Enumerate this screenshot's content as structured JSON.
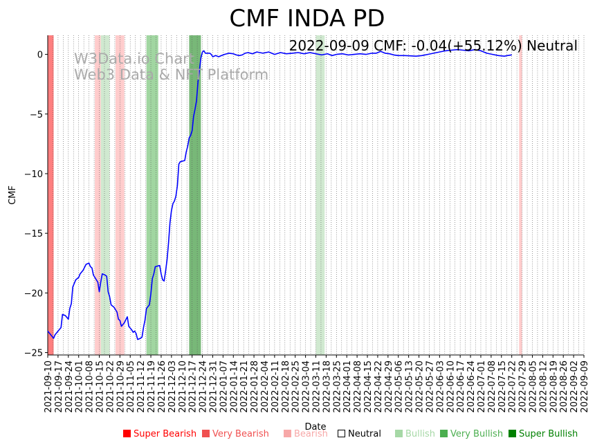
{
  "chart_data": {
    "type": "line",
    "title": "CMF INDA PD",
    "xlabel": "Date",
    "ylabel": "CMF",
    "ylim": [
      -25.2,
      1.6
    ],
    "x_start": "2021-09-10",
    "x_end": "2022-09-09",
    "yticks": [
      0,
      -5,
      -10,
      -15,
      -20,
      -25
    ],
    "ytick_labels": [
      "0",
      "−5",
      "−10",
      "−15",
      "−20",
      "−25"
    ],
    "xtick_labels": [
      "2021-09-10",
      "2021-09-17",
      "2021-09-24",
      "2021-10-01",
      "2021-10-08",
      "2021-10-15",
      "2021-10-22",
      "2021-10-29",
      "2021-11-05",
      "2021-11-12",
      "2021-11-19",
      "2021-11-26",
      "2021-12-03",
      "2021-12-10",
      "2021-12-17",
      "2021-12-24",
      "2021-12-31",
      "2022-01-07",
      "2022-01-14",
      "2022-01-21",
      "2022-01-28",
      "2022-02-04",
      "2022-02-11",
      "2022-02-18",
      "2022-02-25",
      "2022-03-04",
      "2022-03-11",
      "2022-03-18",
      "2022-03-25",
      "2022-04-01",
      "2022-04-08",
      "2022-04-15",
      "2022-04-22",
      "2022-04-29",
      "2022-05-06",
      "2022-05-13",
      "2022-05-20",
      "2022-05-27",
      "2022-06-03",
      "2022-06-10",
      "2022-06-17",
      "2022-06-24",
      "2022-07-01",
      "2022-07-08",
      "2022-07-15",
      "2022-07-22",
      "2022-07-29",
      "2022-08-05",
      "2022-08-12",
      "2022-08-19",
      "2022-08-26",
      "2022-09-02",
      "2022-09-09"
    ],
    "line_color": "#0000ff",
    "series": [
      {
        "name": "CMF",
        "points": [
          [
            0,
            -23.2
          ],
          [
            2,
            -23.5
          ],
          [
            4,
            -23.8
          ],
          [
            5,
            -23.5
          ],
          [
            7,
            -23.2
          ],
          [
            9,
            -22.9
          ],
          [
            10,
            -21.8
          ],
          [
            12,
            -21.9
          ],
          [
            14,
            -22.2
          ],
          [
            15,
            -21.3
          ],
          [
            16,
            -20.9
          ],
          [
            17,
            -19.5
          ],
          [
            19,
            -18.9
          ],
          [
            21,
            -18.7
          ],
          [
            22,
            -18.4
          ],
          [
            24,
            -18.1
          ],
          [
            26,
            -17.6
          ],
          [
            28,
            -17.5
          ],
          [
            29,
            -17.8
          ],
          [
            30,
            -17.9
          ],
          [
            31,
            -18.5
          ],
          [
            33,
            -18.9
          ],
          [
            34,
            -19.1
          ],
          [
            35,
            -19.9
          ],
          [
            36,
            -19.1
          ],
          [
            37,
            -18.4
          ],
          [
            39,
            -18.5
          ],
          [
            40,
            -18.6
          ],
          [
            41,
            -19.9
          ],
          [
            42,
            -20.3
          ],
          [
            43,
            -21.0
          ],
          [
            45,
            -21.2
          ],
          [
            46,
            -21.4
          ],
          [
            47,
            -21.6
          ],
          [
            48,
            -22.2
          ],
          [
            49,
            -22.3
          ],
          [
            50,
            -22.8
          ],
          [
            52,
            -22.5
          ],
          [
            54,
            -22.0
          ],
          [
            55,
            -22.8
          ],
          [
            57,
            -23.1
          ],
          [
            58,
            -23.3
          ],
          [
            59,
            -23.2
          ],
          [
            60,
            -23.4
          ],
          [
            61,
            -23.9
          ],
          [
            63,
            -23.8
          ],
          [
            64,
            -23.7
          ],
          [
            65,
            -22.9
          ],
          [
            66,
            -22.3
          ],
          [
            67,
            -21.3
          ],
          [
            69,
            -21.0
          ],
          [
            70,
            -20.1
          ],
          [
            71,
            -18.8
          ],
          [
            72,
            -18.4
          ],
          [
            73,
            -17.8
          ],
          [
            76,
            -17.7
          ],
          [
            77,
            -18.4
          ],
          [
            78,
            -18.9
          ],
          [
            79,
            -19.0
          ],
          [
            80,
            -18.2
          ],
          [
            81,
            -17.2
          ],
          [
            82,
            -15.8
          ],
          [
            83,
            -14.1
          ],
          [
            84,
            -13.1
          ],
          [
            85,
            -12.5
          ],
          [
            86,
            -12.3
          ],
          [
            87,
            -11.9
          ],
          [
            88,
            -11.0
          ],
          [
            89,
            -9.2
          ],
          [
            90,
            -9.0
          ],
          [
            93,
            -8.9
          ],
          [
            94,
            -8.2
          ],
          [
            95,
            -7.7
          ],
          [
            96,
            -7.0
          ],
          [
            97,
            -6.8
          ],
          [
            98,
            -6.4
          ],
          [
            99,
            -5.2
          ],
          [
            100,
            -4.6
          ],
          [
            101,
            -3.9
          ],
          [
            102,
            -2.3
          ],
          [
            103,
            -1.3
          ],
          [
            104,
            -0.3
          ],
          [
            105,
            0.2
          ],
          [
            106,
            0.3
          ],
          [
            107,
            0.1
          ],
          [
            110,
            0.1
          ],
          [
            111,
            0.0
          ],
          [
            112,
            -0.2
          ],
          [
            114,
            -0.1
          ],
          [
            116,
            -0.2
          ],
          [
            118,
            -0.1
          ],
          [
            120,
            0.0
          ],
          [
            123,
            0.1
          ],
          [
            126,
            0.05
          ],
          [
            128,
            -0.05
          ],
          [
            130,
            -0.1
          ],
          [
            132,
            -0.05
          ],
          [
            134,
            0.1
          ],
          [
            136,
            0.15
          ],
          [
            139,
            0.05
          ],
          [
            142,
            0.2
          ],
          [
            146,
            0.1
          ],
          [
            150,
            0.2
          ],
          [
            154,
            0.0
          ],
          [
            158,
            0.15
          ],
          [
            162,
            0.05
          ],
          [
            166,
            0.1
          ],
          [
            170,
            0.15
          ],
          [
            174,
            0.05
          ],
          [
            178,
            0.15
          ],
          [
            182,
            0.05
          ],
          [
            186,
            -0.05
          ],
          [
            190,
            0.05
          ],
          [
            193,
            -0.1
          ],
          [
            196,
            0.0
          ],
          [
            200,
            0.05
          ],
          [
            204,
            -0.05
          ],
          [
            208,
            0.0
          ],
          [
            212,
            0.05
          ],
          [
            216,
            0.0
          ],
          [
            220,
            0.1
          ],
          [
            223,
            0.1
          ],
          [
            226,
            0.25
          ],
          [
            229,
            0.1
          ],
          [
            232,
            0.05
          ],
          [
            235,
            -0.05
          ],
          [
            238,
            -0.1
          ],
          [
            242,
            -0.1
          ],
          [
            246,
            -0.12
          ],
          [
            250,
            -0.15
          ],
          [
            254,
            -0.1
          ],
          [
            258,
            0.0
          ],
          [
            262,
            0.1
          ],
          [
            266,
            0.2
          ],
          [
            270,
            0.3
          ],
          [
            274,
            0.35
          ],
          [
            278,
            0.4
          ],
          [
            282,
            0.35
          ],
          [
            286,
            0.3
          ],
          [
            290,
            0.4
          ],
          [
            294,
            0.3
          ],
          [
            298,
            0.1
          ],
          [
            302,
            0.0
          ],
          [
            306,
            -0.1
          ],
          [
            310,
            -0.15
          ],
          [
            312,
            -0.1
          ],
          [
            315,
            -0.04
          ]
        ]
      }
    ],
    "sentiment_bands": [
      {
        "start": 0,
        "end": 4,
        "level": "super_bearish"
      },
      {
        "start": 32,
        "end": 36,
        "level": "bearish"
      },
      {
        "start": 36,
        "end": 42,
        "level": "bullish"
      },
      {
        "start": 46,
        "end": 52,
        "level": "bearish"
      },
      {
        "start": 67,
        "end": 75,
        "level": "very_bullish"
      },
      {
        "start": 96,
        "end": 104,
        "level": "super_bullish"
      },
      {
        "start": 182,
        "end": 188,
        "level": "bullish"
      },
      {
        "start": 320,
        "end": 322,
        "level": "bearish"
      }
    ],
    "band_colors": {
      "super_bearish": "#ff7f7f",
      "bearish": "#ffcccc",
      "bullish": "#d0e9d0",
      "very_bullish": "#a1d6a1",
      "super_bullish": "#78b878"
    },
    "annotation": "2022-09-09 CMF: -0.04(+55.12%) Neutral",
    "watermark_line1": "W3Data.io Chart",
    "watermark_line2": "Web3 Data & NFT Platform"
  },
  "legend": [
    {
      "label": "Super Bearish",
      "color": "#ff0000",
      "swatch": "#ff0000"
    },
    {
      "label": "Very Bearish",
      "color": "#f05050",
      "swatch": "#f05050"
    },
    {
      "label": "Bearish",
      "color": "#f7a8a8",
      "swatch": "#f7a8a8"
    },
    {
      "label": "Neutral",
      "color": "#000000",
      "swatch": "outline"
    },
    {
      "label": "Bullish",
      "color": "#a6d8a6",
      "swatch": "#a6d8a6"
    },
    {
      "label": "Very Bullish",
      "color": "#4caf50",
      "swatch": "#4caf50"
    },
    {
      "label": "Super Bullish",
      "color": "#008000",
      "swatch": "#008000"
    }
  ]
}
